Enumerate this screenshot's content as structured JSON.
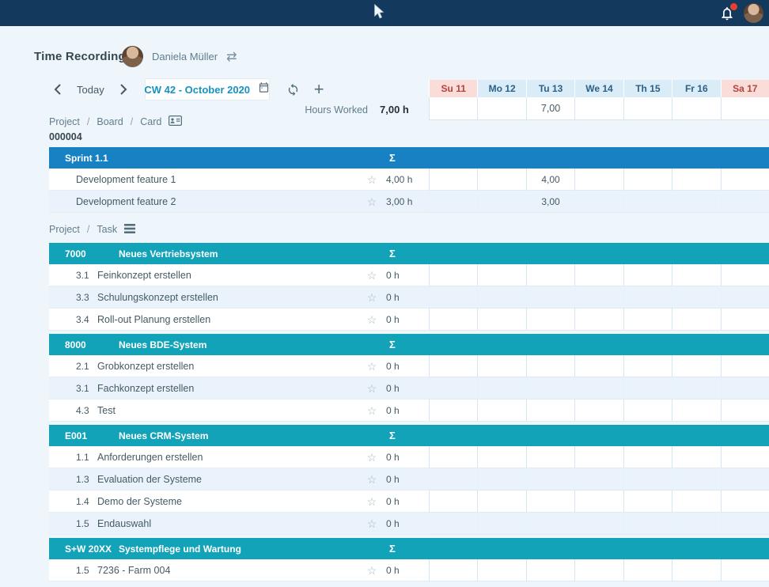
{
  "topbar": {
    "bell_icon": "notification-bell",
    "notification_dot": true,
    "user_avatar": "user-photo"
  },
  "header": {
    "title": "Time Recording",
    "user_name": "Daniela Müller"
  },
  "toolbar": {
    "today_label": "Today",
    "period": "CW 42 - October 2020"
  },
  "week": {
    "days": [
      {
        "label": "Su 11",
        "weekend": true
      },
      {
        "label": "Mo 12",
        "weekend": false
      },
      {
        "label": "Tu 13",
        "weekend": false
      },
      {
        "label": "We 14",
        "weekend": false
      },
      {
        "label": "Th 15",
        "weekend": false
      },
      {
        "label": "Fr 16",
        "weekend": false
      },
      {
        "label": "Sa 17",
        "weekend": true
      }
    ],
    "hours_worked_label": "Hours Worked",
    "hours_worked_total": "7,00 h",
    "day_totals": [
      "",
      "",
      "7,00",
      "",
      "",
      "",
      ""
    ]
  },
  "breadcrumb_board": {
    "parts": [
      "Project",
      "Board",
      "Card"
    ]
  },
  "board_number": "000004",
  "breadcrumb_task": {
    "parts": [
      "Project",
      "Task"
    ]
  },
  "sum_symbol": "Σ",
  "sections": [
    {
      "style": "blue",
      "code": "",
      "title": "Sprint 1.1",
      "rows": [
        {
          "id": "",
          "label": "Development feature 1",
          "sum": "4,00 h",
          "values": [
            "",
            "",
            "4,00",
            "",
            "",
            "",
            ""
          ]
        },
        {
          "id": "",
          "label": "Development feature 2",
          "sum": "3,00 h",
          "values": [
            "",
            "",
            "3,00",
            "",
            "",
            "",
            ""
          ]
        }
      ]
    },
    {
      "style": "teal",
      "code": "7000",
      "title": "Neues Vertriebsystem",
      "rows": [
        {
          "id": "3.1",
          "label": "Feinkonzept erstellen",
          "sum": "0 h",
          "values": [
            "",
            "",
            "",
            "",
            "",
            "",
            ""
          ]
        },
        {
          "id": "3.3",
          "label": "Schulungskonzept erstellen",
          "sum": "0 h",
          "values": [
            "",
            "",
            "",
            "",
            "",
            "",
            ""
          ]
        },
        {
          "id": "3.4",
          "label": "Roll-out Planung erstellen",
          "sum": "0 h",
          "values": [
            "",
            "",
            "",
            "",
            "",
            "",
            ""
          ]
        }
      ]
    },
    {
      "style": "teal",
      "code": "8000",
      "title": "Neues BDE-System",
      "rows": [
        {
          "id": "2.1",
          "label": "Grobkonzept erstellen",
          "sum": "0 h",
          "values": [
            "",
            "",
            "",
            "",
            "",
            "",
            ""
          ]
        },
        {
          "id": "3.1",
          "label": "Fachkonzept erstellen",
          "sum": "0 h",
          "values": [
            "",
            "",
            "",
            "",
            "",
            "",
            ""
          ]
        },
        {
          "id": "4.3",
          "label": "Test",
          "sum": "0 h",
          "values": [
            "",
            "",
            "",
            "",
            "",
            "",
            ""
          ]
        }
      ]
    },
    {
      "style": "teal",
      "code": "E001",
      "title": "Neues CRM-System",
      "rows": [
        {
          "id": "1.1",
          "label": "Anforderungen erstellen",
          "sum": "0 h",
          "values": [
            "",
            "",
            "",
            "",
            "",
            "",
            ""
          ]
        },
        {
          "id": "1.3",
          "label": "Evaluation der Systeme",
          "sum": "0 h",
          "values": [
            "",
            "",
            "",
            "",
            "",
            "",
            ""
          ]
        },
        {
          "id": "1.4",
          "label": "Demo der Systeme",
          "sum": "0 h",
          "values": [
            "",
            "",
            "",
            "",
            "",
            "",
            ""
          ]
        },
        {
          "id": "1.5",
          "label": "Endauswahl",
          "sum": "0 h",
          "values": [
            "",
            "",
            "",
            "",
            "",
            "",
            ""
          ]
        }
      ]
    },
    {
      "style": "teal",
      "code": "S+W 20XX",
      "title": "Systempflege und Wartung",
      "rows": [
        {
          "id": "1.5",
          "label": "7236 - Farm 004",
          "sum": "0 h",
          "values": [
            "",
            "",
            "",
            "",
            "",
            "",
            ""
          ]
        }
      ]
    }
  ],
  "colors": {
    "navy_bar": "#133a5c",
    "teal_header": "#13a3b9",
    "blue_header": "#1781c3",
    "weekend_bg": "#fadcd8",
    "weekend_text": "#b3443a",
    "weekday_bg": "#d9ecf7",
    "weekday_text": "#2d5f86",
    "accent_date": "#1792c0",
    "notification_dot": "#e8402e"
  }
}
